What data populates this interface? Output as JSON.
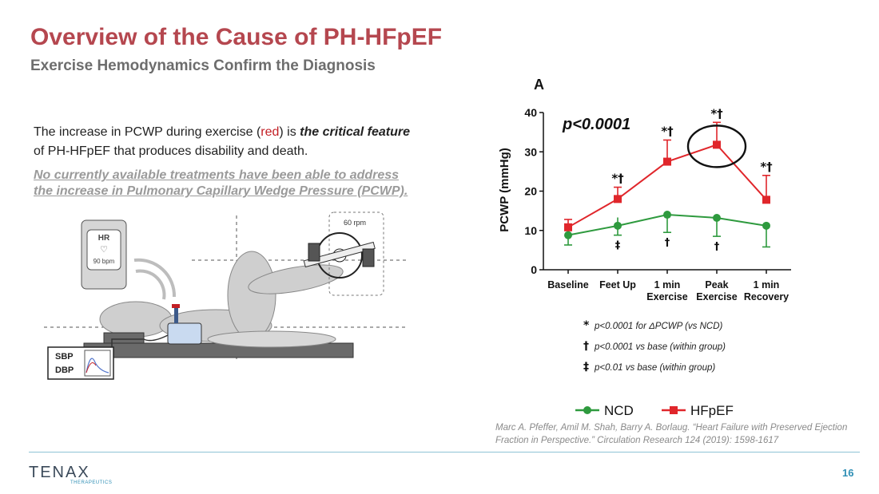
{
  "slide": {
    "title": "Overview of the Cause of PH-HFpEF",
    "subtitle": "Exercise Hemodynamics Confirm the Diagnosis",
    "body_part1": "The increase in PCWP during exercise (",
    "body_red": "red",
    "body_part2": ") is ",
    "body_bold": "the critical feature",
    "body_part3": " of PH-HFpEF that produces disability and death.",
    "underline_text": "No currently available treatments have been able to address the increase in Pulmonary Capillary Wedge Pressure (PCWP).",
    "citation": "Marc A. Pfeffer, Amil M. Shah, Barry A. Borlaug. “Heart Failure with Preserved Ejection  Fraction in Perspective.” Circulation Research 124 (2019):  1598-1617",
    "page_number": "16",
    "logo_text": "TENAX",
    "logo_sub": "THERAPEUTICS"
  },
  "illustration": {
    "hr_label": "HR",
    "hr_value": "90 bpm",
    "rpm_label": "60 rpm",
    "sbp_label": "SBP",
    "dbp_label": "DBP"
  },
  "chart_data": {
    "type": "line",
    "panel_label": "A",
    "annotation": "p<0.0001",
    "ylabel": "PCWP (mmHg)",
    "xlabel": "",
    "ylim": [
      0,
      40
    ],
    "yticks": [
      0,
      10,
      20,
      30,
      40
    ],
    "categories": [
      [
        "Baseline"
      ],
      [
        "Feet Up"
      ],
      [
        "1 min",
        "Exercise"
      ],
      [
        "Peak",
        "Exercise"
      ],
      [
        "1 min",
        "Recovery"
      ]
    ],
    "series": [
      {
        "name": "NCD",
        "color": "#2e9a3e",
        "marker": "circle",
        "values": [
          8.8,
          11.2,
          14.0,
          13.2,
          11.2
        ],
        "err_low": [
          6.3,
          8.8,
          9.5,
          8.5,
          5.8
        ],
        "err_high": [
          10.8,
          13.3,
          14.0,
          13.2,
          11.2
        ],
        "markers_below": [
          "",
          "‡",
          "†",
          "†",
          ""
        ]
      },
      {
        "name": "HFpEF",
        "color": "#e0262b",
        "marker": "square",
        "values": [
          10.8,
          18.0,
          27.5,
          31.8,
          17.8
        ],
        "err_low": [
          10.8,
          18.0,
          27.5,
          31.8,
          17.8
        ],
        "err_high": [
          12.8,
          21.0,
          33.0,
          37.5,
          24.0
        ],
        "markers_above": [
          "",
          "*†",
          "*†",
          "*†",
          "*†"
        ]
      }
    ],
    "highlight_category": 3,
    "footnotes": [
      {
        "symbol": "*",
        "text": "p<0.0001 for ΔPCWP (vs NCD)"
      },
      {
        "symbol": "†",
        "text": "p<0.0001 vs base (within group)"
      },
      {
        "symbol": "‡",
        "text": "p<0.01 vs base (within group)"
      }
    ],
    "legend_position": "bottom"
  }
}
